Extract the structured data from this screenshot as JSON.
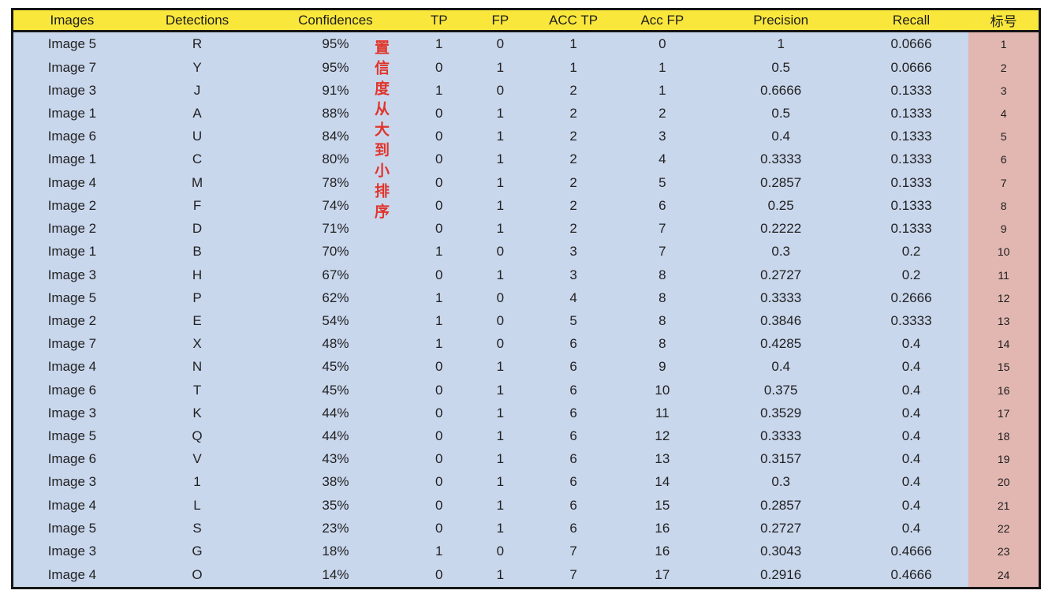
{
  "chart_data": {
    "type": "table",
    "title": "",
    "columns": [
      "Images",
      "Detections",
      "Confidences",
      "TP",
      "FP",
      "ACC TP",
      "Acc FP",
      "Precision",
      "Recall",
      "标号"
    ],
    "column_keys": [
      "images",
      "detections",
      "confidences",
      "tp",
      "fp",
      "acc-tp",
      "acc-fp",
      "precision",
      "recall",
      "label-number"
    ],
    "rows": [
      [
        "Image 5",
        "R",
        "95%",
        "1",
        "0",
        "1",
        "0",
        "1",
        "0.0666",
        "1"
      ],
      [
        "Image 7",
        "Y",
        "95%",
        "0",
        "1",
        "1",
        "1",
        "0.5",
        "0.0666",
        "2"
      ],
      [
        "Image 3",
        "J",
        "91%",
        "1",
        "0",
        "2",
        "1",
        "0.6666",
        "0.1333",
        "3"
      ],
      [
        "Image 1",
        "A",
        "88%",
        "0",
        "1",
        "2",
        "2",
        "0.5",
        "0.1333",
        "4"
      ],
      [
        "Image 6",
        "U",
        "84%",
        "0",
        "1",
        "2",
        "3",
        "0.4",
        "0.1333",
        "5"
      ],
      [
        "Image 1",
        "C",
        "80%",
        "0",
        "1",
        "2",
        "4",
        "0.3333",
        "0.1333",
        "6"
      ],
      [
        "Image 4",
        "M",
        "78%",
        "0",
        "1",
        "2",
        "5",
        "0.2857",
        "0.1333",
        "7"
      ],
      [
        "Image 2",
        "F",
        "74%",
        "0",
        "1",
        "2",
        "6",
        "0.25",
        "0.1333",
        "8"
      ],
      [
        "Image 2",
        "D",
        "71%",
        "0",
        "1",
        "2",
        "7",
        "0.2222",
        "0.1333",
        "9"
      ],
      [
        "Image 1",
        "B",
        "70%",
        "1",
        "0",
        "3",
        "7",
        "0.3",
        "0.2",
        "10"
      ],
      [
        "Image 3",
        "H",
        "67%",
        "0",
        "1",
        "3",
        "8",
        "0.2727",
        "0.2",
        "11"
      ],
      [
        "Image 5",
        "P",
        "62%",
        "1",
        "0",
        "4",
        "8",
        "0.3333",
        "0.2666",
        "12"
      ],
      [
        "Image 2",
        "E",
        "54%",
        "1",
        "0",
        "5",
        "8",
        "0.3846",
        "0.3333",
        "13"
      ],
      [
        "Image 7",
        "X",
        "48%",
        "1",
        "0",
        "6",
        "8",
        "0.4285",
        "0.4",
        "14"
      ],
      [
        "Image 4",
        "N",
        "45%",
        "0",
        "1",
        "6",
        "9",
        "0.4",
        "0.4",
        "15"
      ],
      [
        "Image 6",
        "T",
        "45%",
        "0",
        "1",
        "6",
        "10",
        "0.375",
        "0.4",
        "16"
      ],
      [
        "Image 3",
        "K",
        "44%",
        "0",
        "1",
        "6",
        "11",
        "0.3529",
        "0.4",
        "17"
      ],
      [
        "Image 5",
        "Q",
        "44%",
        "0",
        "1",
        "6",
        "12",
        "0.3333",
        "0.4",
        "18"
      ],
      [
        "Image 6",
        "V",
        "43%",
        "0",
        "1",
        "6",
        "13",
        "0.3157",
        "0.4",
        "19"
      ],
      [
        "Image 3",
        "1",
        "38%",
        "0",
        "1",
        "6",
        "14",
        "0.3",
        "0.4",
        "20"
      ],
      [
        "Image 4",
        "L",
        "35%",
        "0",
        "1",
        "6",
        "15",
        "0.2857",
        "0.4",
        "21"
      ],
      [
        "Image 5",
        "S",
        "23%",
        "0",
        "1",
        "6",
        "16",
        "0.2727",
        "0.4",
        "22"
      ],
      [
        "Image 3",
        "G",
        "18%",
        "1",
        "0",
        "7",
        "16",
        "0.3043",
        "0.4666",
        "23"
      ],
      [
        "Image 4",
        "O",
        "14%",
        "0",
        "1",
        "7",
        "17",
        "0.2916",
        "0.4666",
        "24"
      ]
    ],
    "annotation": "置信度从大到小排序",
    "layout_hints": {
      "grid": false,
      "annotation_position": "vertical, right of Confidences column, spans rows 1-9"
    }
  },
  "colors": {
    "header_bg": "#f9e73c",
    "body_bg": "#c9d7ed",
    "index_col_bg": "#e2b7b2",
    "annotation_red": "#e0342a",
    "border": "#161616",
    "text": "#212121"
  }
}
